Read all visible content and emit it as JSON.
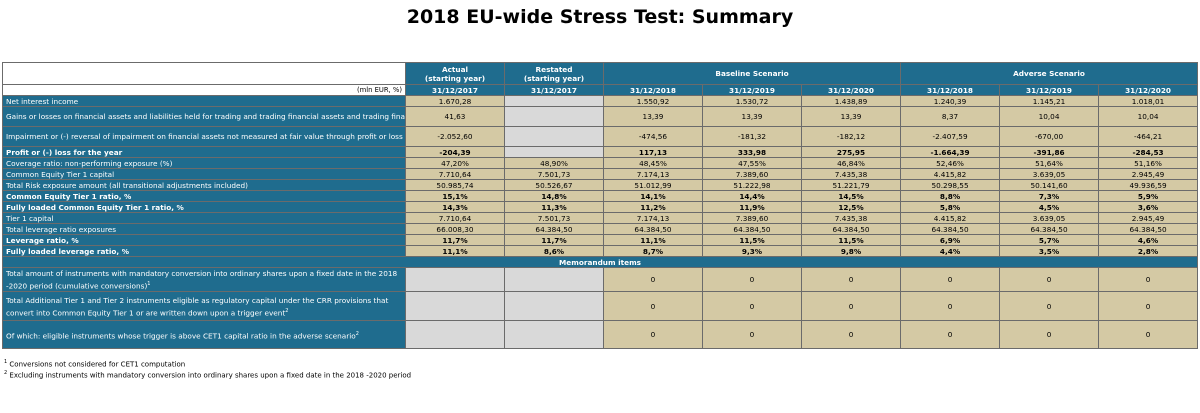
{
  "title": "2018 EU-wide Stress Test: Summary",
  "header": {
    "unit": "(mln EUR, %)",
    "actual": "Actual\n(starting year)",
    "restated": "Restated\n(starting year)",
    "baseline": "Baseline Scenario",
    "adverse": "Adverse Scenario",
    "dates": [
      "31/12/2017",
      "31/12/2017",
      "31/12/2018",
      "31/12/2019",
      "31/12/2020",
      "31/12/2018",
      "31/12/2019",
      "31/12/2020"
    ]
  },
  "rows": [
    {
      "label": "Net interest income",
      "values": [
        "1.670,28",
        "",
        "1.550,92",
        "1.530,72",
        "1.438,89",
        "1.240,39",
        "1.145,21",
        "1.018,01"
      ]
    },
    {
      "label": "Gains or losses on financial assets and liabilities held for trading and trading financial assets and trading financial liabilities",
      "values": [
        "41,63",
        "",
        "13,39",
        "13,39",
        "13,39",
        "8,37",
        "10,04",
        "10,04"
      ]
    },
    {
      "label": "Impairment or (-) reversal of impairment on financial assets not measured at fair value through profit or loss",
      "values": [
        "-2.052,60",
        "",
        "-474,56",
        "-181,32",
        "-182,12",
        "-2.407,59",
        "-670,00",
        "-464,21"
      ]
    },
    {
      "label": "Profit or (-) loss for the year",
      "values": [
        "-204,39",
        "",
        "117,13",
        "333,98",
        "275,95",
        "-1.664,39",
        "-391,86",
        "-284,53"
      ]
    },
    {
      "label": "Coverage ratio: non-performing exposure (%)",
      "values": [
        "47,20%",
        "48,90%",
        "48,45%",
        "47,55%",
        "46,84%",
        "52,46%",
        "51,64%",
        "51,16%"
      ]
    },
    {
      "label": "Common Equity Tier 1 capital",
      "values": [
        "7.710,64",
        "7.501,73",
        "7.174,13",
        "7.389,60",
        "7.435,38",
        "4.415,82",
        "3.639,05",
        "2.945,49"
      ]
    },
    {
      "label": "Total Risk exposure amount (all transitional adjustments included)",
      "values": [
        "50.985,74",
        "50.526,67",
        "51.012,99",
        "51.222,98",
        "51.221,79",
        "50.298,55",
        "50.141,60",
        "49.936,59"
      ]
    },
    {
      "label": "Common Equity Tier 1 ratio, %",
      "values": [
        "15,1%",
        "14,8%",
        "14,1%",
        "14,4%",
        "14,5%",
        "8,8%",
        "7,3%",
        "5,9%"
      ]
    },
    {
      "label": "Fully loaded Common Equity Tier 1 ratio, %",
      "values": [
        "14,3%",
        "11,3%",
        "11,2%",
        "11,9%",
        "12,5%",
        "5,8%",
        "4,5%",
        "3,6%"
      ]
    },
    {
      "label": "Tier 1 capital",
      "values": [
        "7.710,64",
        "7.501,73",
        "7.174,13",
        "7.389,60",
        "7.435,38",
        "4.415,82",
        "3.639,05",
        "2.945,49"
      ]
    },
    {
      "label": "Total leverage ratio exposures",
      "values": [
        "66.008,30",
        "64.384,50",
        "64.384,50",
        "64.384,50",
        "64.384,50",
        "64.384,50",
        "64.384,50",
        "64.384,50"
      ]
    },
    {
      "label": "Leverage ratio, %",
      "values": [
        "11,7%",
        "11,7%",
        "11,1%",
        "11,5%",
        "11,5%",
        "6,9%",
        "5,7%",
        "4,6%"
      ]
    },
    {
      "label": "Fully loaded leverage ratio, %",
      "values": [
        "11,1%",
        "8,6%",
        "8,7%",
        "9,3%",
        "9,8%",
        "4,4%",
        "3,5%",
        "2,8%"
      ]
    }
  ],
  "memo": {
    "title": "Memorandum items",
    "rows": [
      {
        "label": "Total amount of instruments with mandatory conversion into ordinary shares upon a fixed date in the 2018 -2020 period (cumulative conversions)",
        "sup": "1",
        "values": [
          "",
          "",
          "0",
          "0",
          "0",
          "0",
          "0",
          "0"
        ]
      },
      {
        "label": "Total Additional Tier 1 and Tier 2 instruments eligible as regulatory capital under the CRR provisions that convert into Common Equity Tier 1 or are written down upon a trigger event",
        "sup": "2",
        "values": [
          "",
          "",
          "0",
          "0",
          "0",
          "0",
          "0",
          "0"
        ]
      },
      {
        "label": "Of which: eligible instruments whose trigger is above CET1 capital ratio in the adverse scenario",
        "sup": "2",
        "values": [
          "",
          "",
          "0",
          "0",
          "0",
          "0",
          "0",
          "0"
        ]
      }
    ]
  },
  "footnotes": [
    {
      "mark": "1",
      "text": "Conversions not considered for CET1 computation"
    },
    {
      "mark": "2",
      "text": "Excluding instruments with mandatory conversion into ordinary shares upon a fixed date in the 2018 -2020 period"
    }
  ],
  "colors": {
    "header": "#1f6c8e",
    "value_cell": "#d4c9a4",
    "blank_cell": "#d9d9d9"
  }
}
